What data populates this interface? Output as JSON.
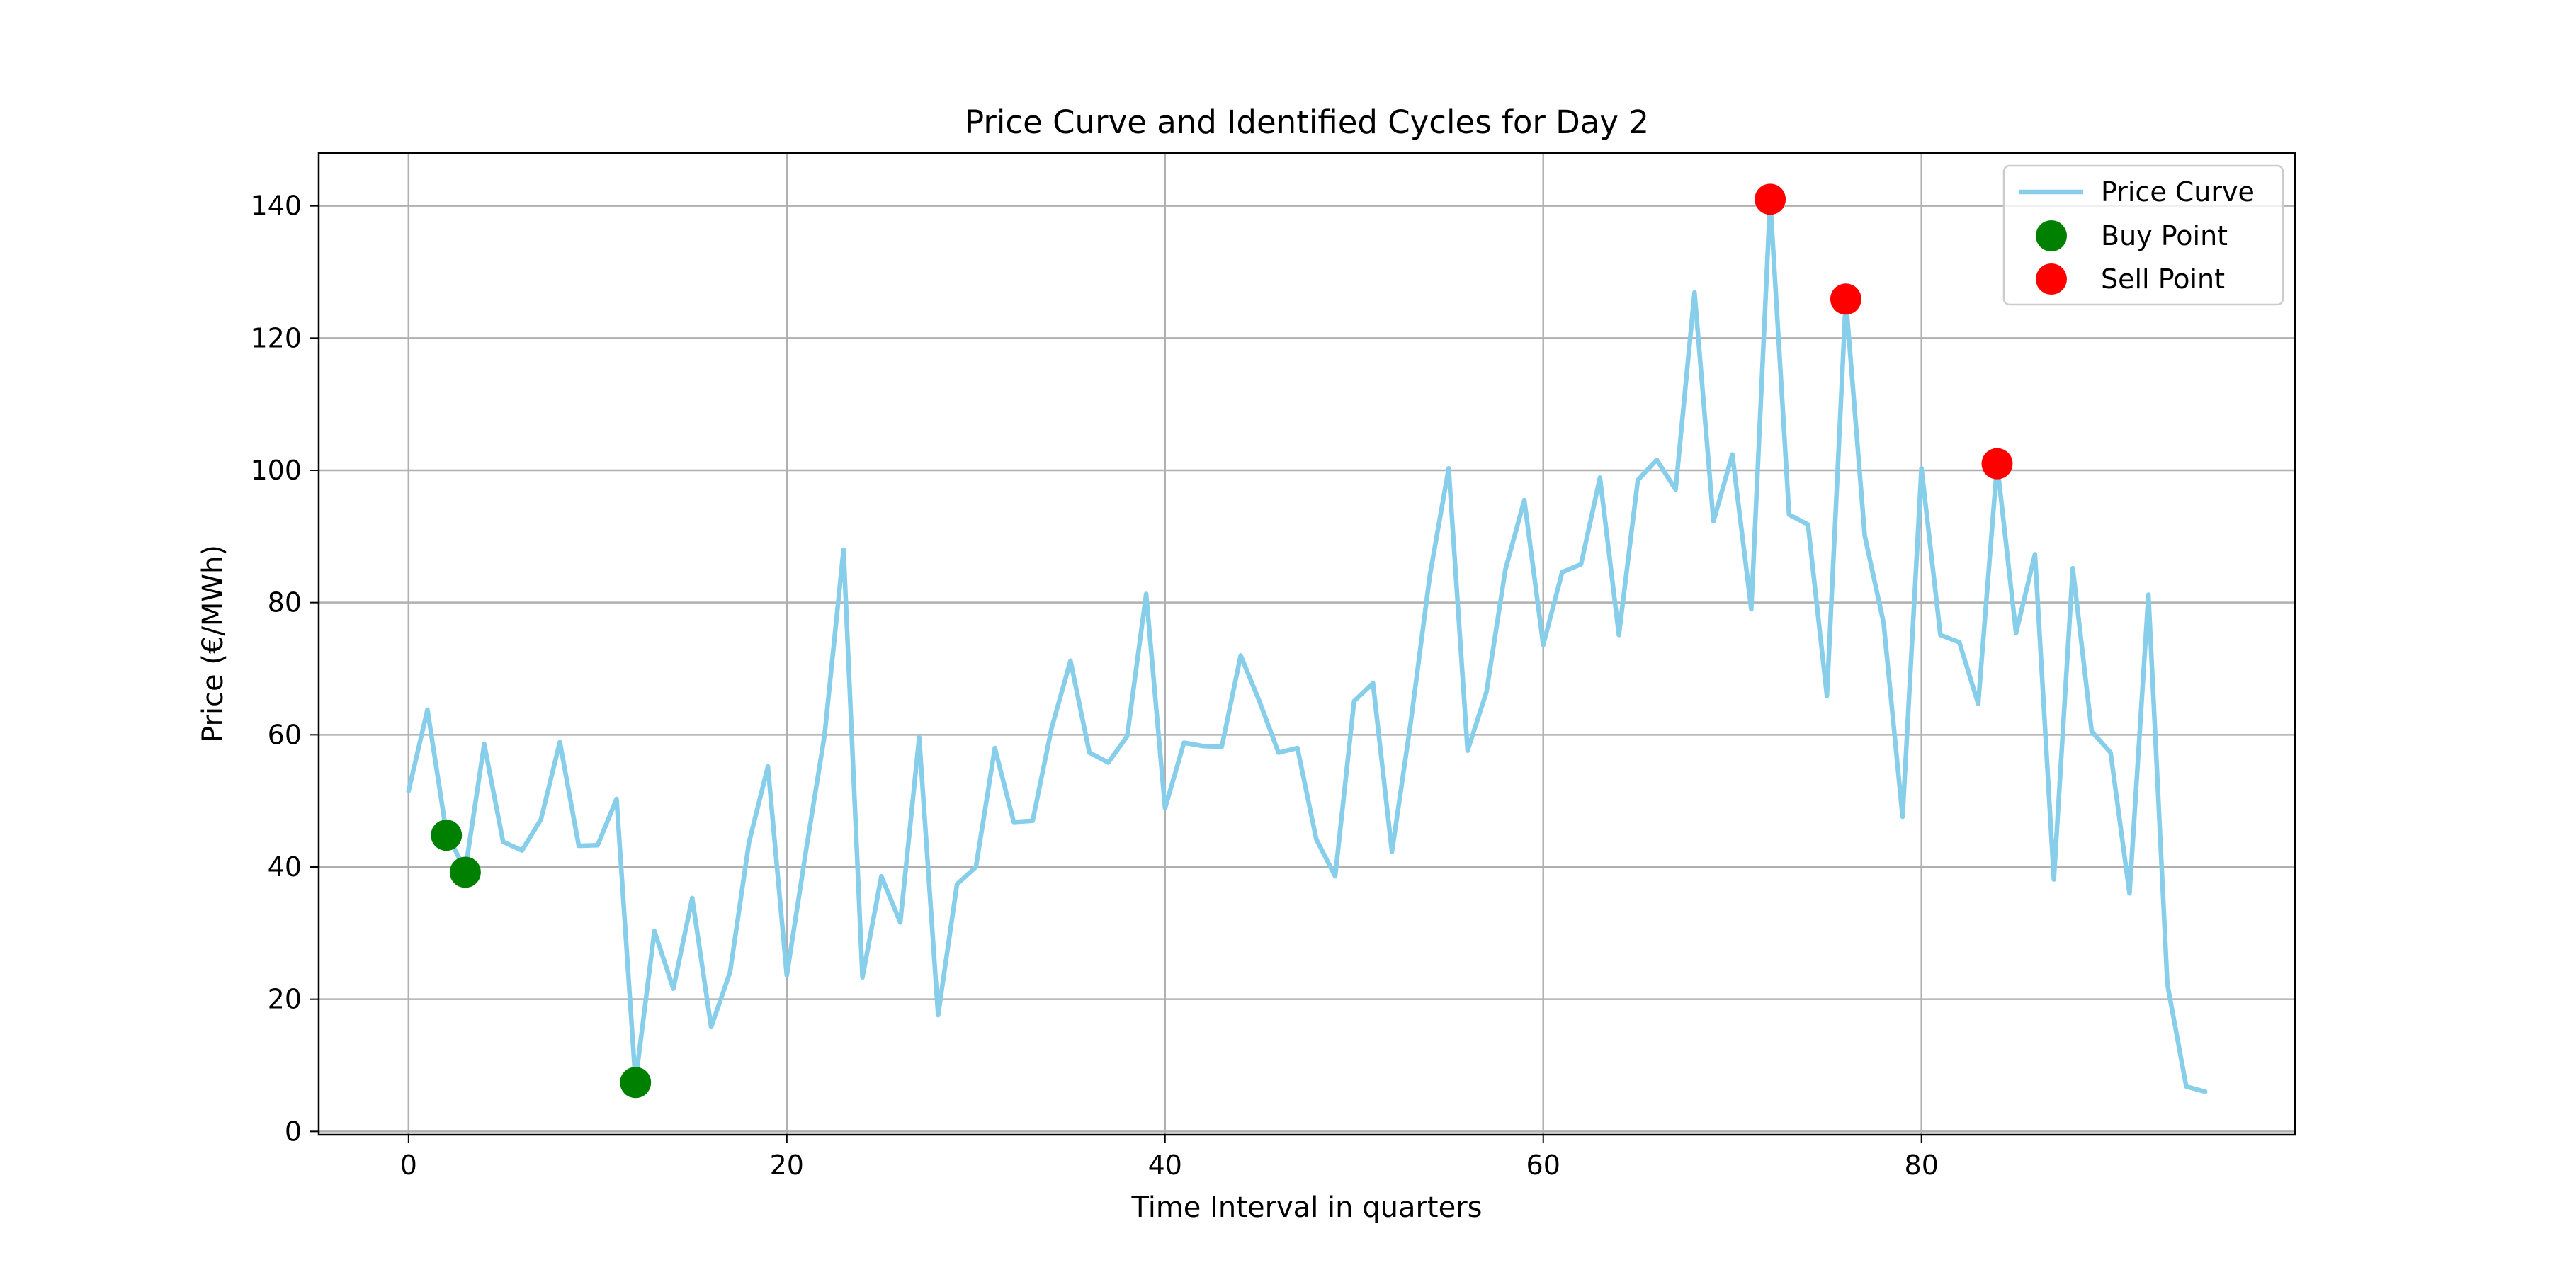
{
  "chart_data": {
    "type": "line",
    "title": "Price Curve and Identified Cycles for Day 2",
    "xlabel": "Time Interval in quarters",
    "ylabel": "Price (€/MWh)",
    "xlim": [
      -4.75,
      99.75
    ],
    "ylim": [
      -0.5,
      148
    ],
    "xticks": [
      0,
      20,
      40,
      60,
      80
    ],
    "yticks": [
      0,
      20,
      40,
      60,
      80,
      100,
      120,
      140
    ],
    "grid": true,
    "legend_position": "top-right",
    "series": [
      {
        "name": "Price Curve",
        "kind": "line",
        "color": "#87ceeb",
        "x": [
          0,
          1,
          2,
          3,
          4,
          5,
          6,
          7,
          8,
          9,
          10,
          11,
          12,
          13,
          14,
          15,
          16,
          17,
          18,
          19,
          20,
          21,
          22,
          23,
          24,
          25,
          26,
          27,
          28,
          29,
          30,
          31,
          32,
          33,
          34,
          35,
          36,
          37,
          38,
          39,
          40,
          41,
          42,
          43,
          44,
          45,
          46,
          47,
          48,
          49,
          50,
          51,
          52,
          53,
          54,
          55,
          56,
          57,
          58,
          59,
          60,
          61,
          62,
          63,
          64,
          65,
          66,
          67,
          68,
          69,
          70,
          71,
          72,
          73,
          74,
          75,
          76,
          77,
          78,
          79,
          80,
          81,
          82,
          83,
          84,
          85,
          86,
          87,
          88,
          89,
          90,
          91,
          92,
          93,
          94,
          95
        ],
        "values": [
          51.5,
          63.8,
          45.2,
          39.5,
          58.6,
          43.8,
          42.5,
          47.2,
          58.9,
          43.2,
          43.3,
          50.3,
          7.5,
          30.3,
          21.6,
          35.3,
          15.8,
          24.1,
          43.7,
          55.2,
          23.6,
          42.2,
          60.0,
          88.0,
          23.3,
          38.6,
          31.6,
          59.6,
          17.6,
          37.4,
          40.0,
          58.0,
          46.8,
          47.0,
          61.0,
          71.2,
          57.3,
          55.8,
          59.8,
          81.3,
          48.9,
          58.8,
          58.3,
          58.2,
          72.0,
          65.0,
          57.3,
          58.0,
          44.2,
          38.6,
          65.1,
          67.8,
          42.3,
          62.0,
          84.0,
          100.3,
          57.6,
          66.5,
          85.0,
          95.5,
          73.6,
          84.6,
          85.8,
          98.9,
          75.1,
          98.5,
          101.6,
          97.1,
          126.9,
          92.3,
          102.4,
          79.0,
          141.0,
          93.3,
          91.8,
          65.9,
          125.9,
          90.1,
          76.9,
          47.6,
          100.3,
          75.1,
          74.0,
          64.7,
          101.0,
          75.4,
          87.3,
          38.1,
          85.2,
          60.5,
          57.3,
          36.0,
          81.2,
          22.3,
          6.8,
          6.0
        ]
      },
      {
        "name": "Buy Point",
        "kind": "scatter",
        "color": "#008000",
        "x": [
          2,
          3,
          12
        ],
        "values": [
          44.8,
          39.2,
          7.4
        ]
      },
      {
        "name": "Sell Point",
        "kind": "scatter",
        "color": "#ff0000",
        "x": [
          72,
          76,
          84
        ],
        "values": [
          141.0,
          125.9,
          101.0
        ]
      }
    ]
  }
}
